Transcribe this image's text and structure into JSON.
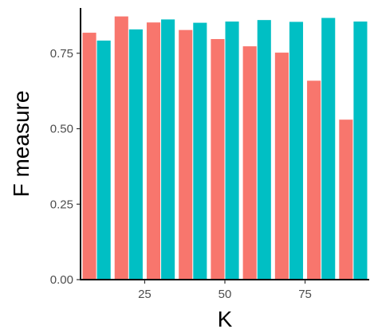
{
  "chart_data": {
    "type": "bar",
    "title": "",
    "xlabel": "K",
    "ylabel": "F measure",
    "xlim": [
      5,
      95
    ],
    "ylim": [
      0,
      0.9
    ],
    "x_ticks": [
      {
        "value": 25,
        "label": "25"
      },
      {
        "value": 50,
        "label": "50"
      },
      {
        "value": 75,
        "label": "75"
      }
    ],
    "y_ticks": [
      {
        "value": 0.0,
        "label": "0.00"
      },
      {
        "value": 0.25,
        "label": "0.25"
      },
      {
        "value": 0.5,
        "label": "0.50"
      },
      {
        "value": 0.75,
        "label": "0.75"
      }
    ],
    "grid": false,
    "legend": "none",
    "x": [
      10,
      20,
      30,
      40,
      50,
      60,
      70,
      80,
      90
    ],
    "series": [
      {
        "color": "#F8766D",
        "values": [
          0.818,
          0.872,
          0.852,
          0.827,
          0.797,
          0.773,
          0.752,
          0.659,
          0.53
        ]
      },
      {
        "color": "#00BFC4",
        "values": [
          0.792,
          0.829,
          0.862,
          0.851,
          0.855,
          0.86,
          0.854,
          0.867,
          0.855
        ]
      }
    ]
  }
}
